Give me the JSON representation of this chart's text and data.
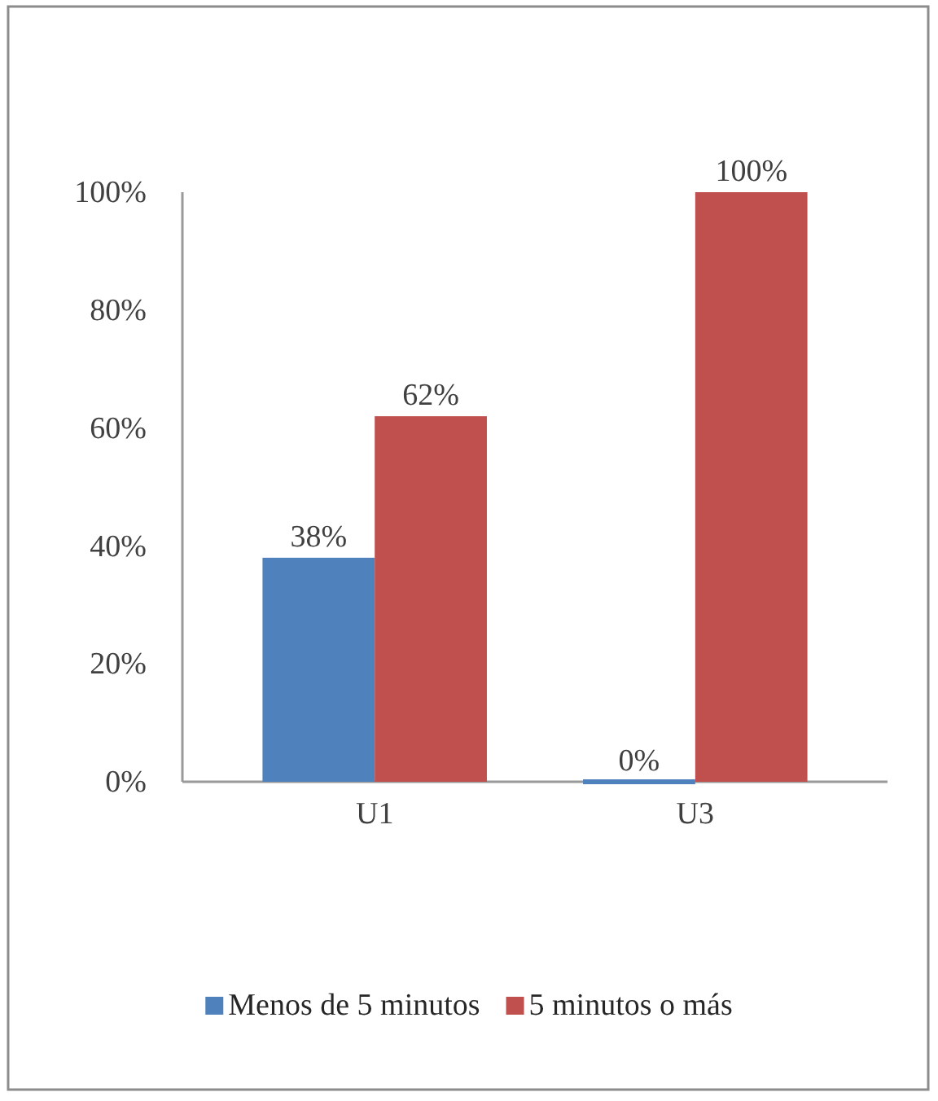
{
  "chart_data": {
    "type": "bar",
    "categories": [
      "U1",
      "U3"
    ],
    "series": [
      {
        "name": "Menos de 5 minutos",
        "color": "#4f81bd",
        "values": [
          38,
          0
        ],
        "value_labels": [
          "38%",
          "0%"
        ]
      },
      {
        "name": "5 minutos o más",
        "color": "#c0504d",
        "values": [
          62,
          100
        ],
        "value_labels": [
          "62%",
          "100%"
        ]
      }
    ],
    "ylim": [
      0,
      100
    ],
    "yticks": [
      {
        "value": 0,
        "label": "0%"
      },
      {
        "value": 20,
        "label": "20%"
      },
      {
        "value": 40,
        "label": "40%"
      },
      {
        "value": 60,
        "label": "60%"
      },
      {
        "value": 80,
        "label": "80%"
      },
      {
        "value": 100,
        "label": "100%"
      }
    ],
    "grid": false,
    "legend": "bottom"
  }
}
